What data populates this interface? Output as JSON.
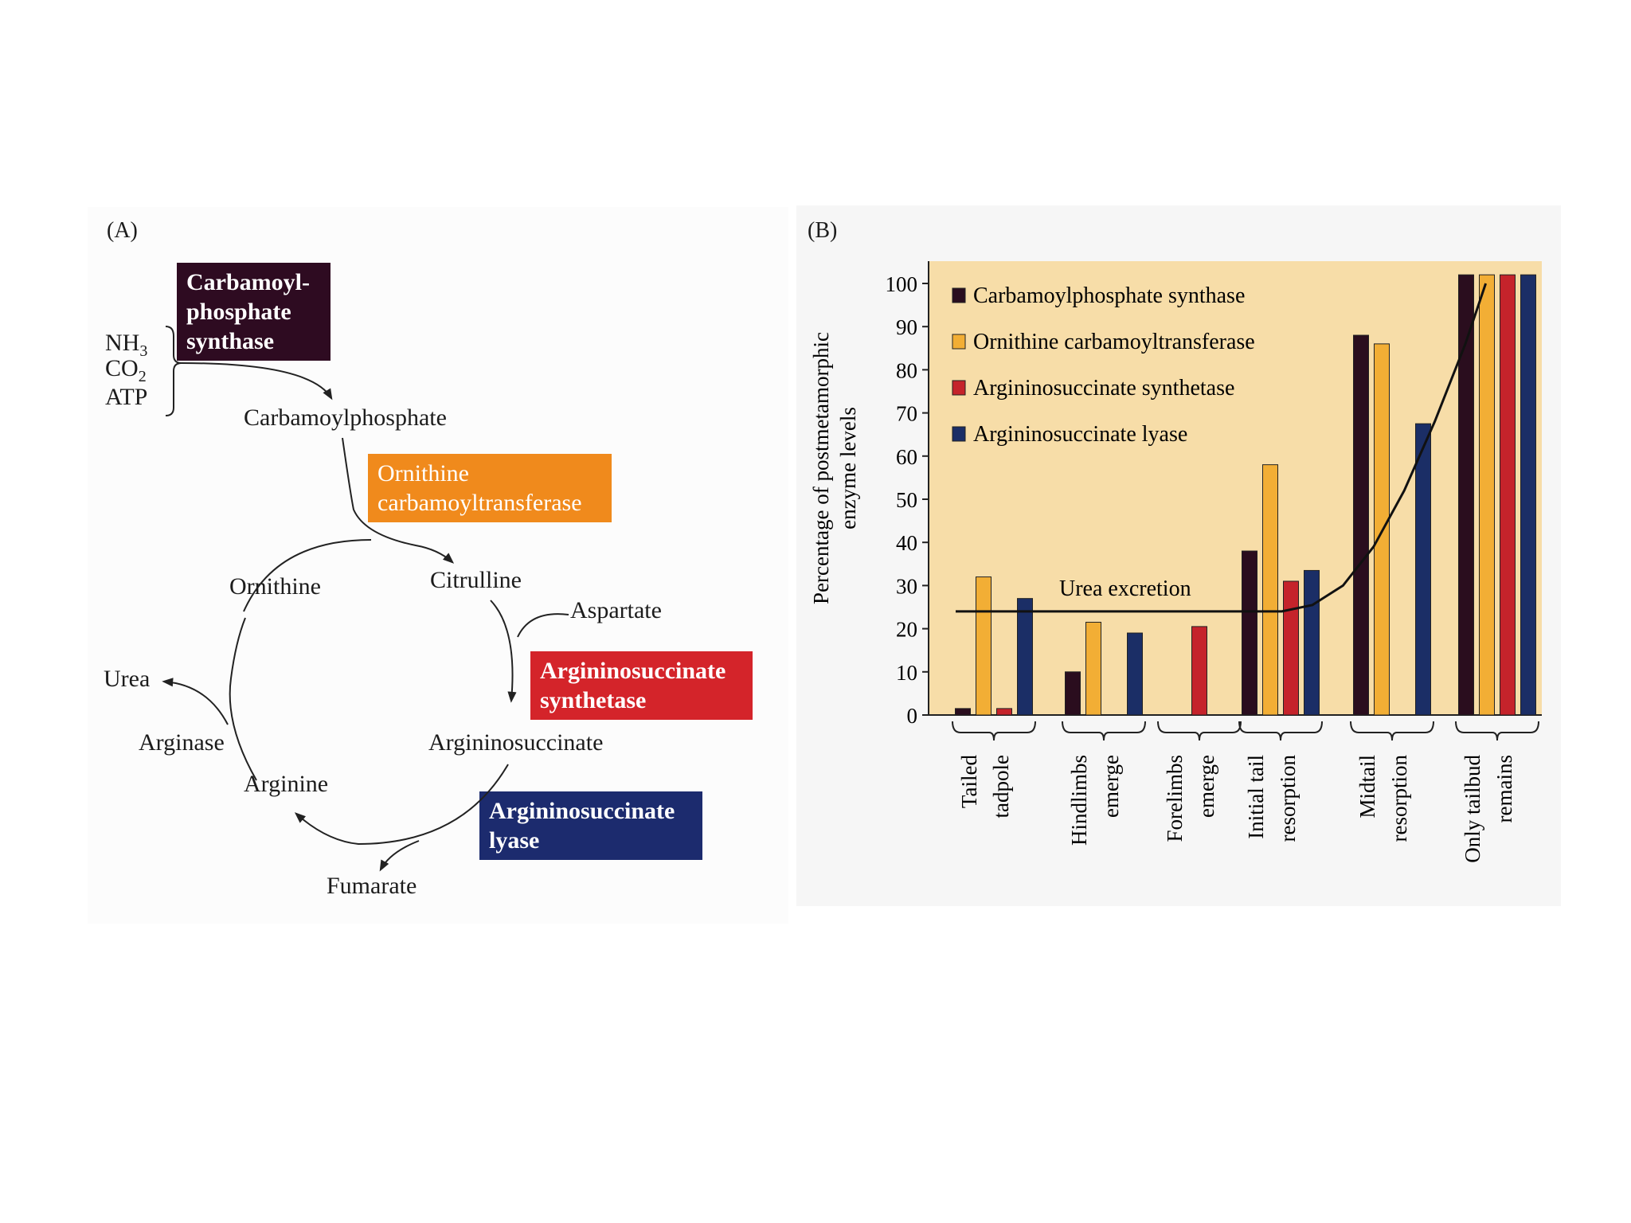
{
  "panel_a": {
    "label": "(A)",
    "reactants": [
      "NH",
      "CO",
      "ATP"
    ],
    "subscript": "3",
    "subscript2": "2",
    "molecules": {
      "carbamoylphosphate": "Carbamoylphosphate",
      "ornithine": "Ornithine",
      "citrulline": "Citrulline",
      "aspartate": "Aspartate",
      "urea": "Urea",
      "arginase": "Arginase",
      "arginine": "Arginine",
      "argininosuccinate": "Argininosuccinate",
      "fumarate": "Fumarate"
    },
    "enzymes": {
      "cps_line1": "Carbamoyl-",
      "cps_line2": "phosphate",
      "cps_line3": "synthase",
      "otc_line1": "Ornithine",
      "otc_line2": "carbamoyltransferase",
      "ass_line1": "Argininosuccinate",
      "ass_line2": "synthetase",
      "asl_line1": "Argininosuccinate",
      "asl_line2": "lyase"
    },
    "colors": {
      "cps": "#2e0b21",
      "otc": "#f08a1c",
      "ass": "#d4242a",
      "asl": "#1c2b6e"
    }
  },
  "panel_b": {
    "label": "(B)",
    "ylabel_line1": "Percentage of postmetamorphic",
    "ylabel_line2": "enzyme levels",
    "curve_label": "Urea excretion"
  },
  "chart_data": {
    "type": "bar",
    "ylim": [
      0,
      100
    ],
    "yticks": [
      0,
      10,
      20,
      30,
      40,
      50,
      60,
      70,
      80,
      90,
      100
    ],
    "categories": [
      [
        "Tailed",
        "tadpole"
      ],
      [
        "Hindlimbs",
        "emerge"
      ],
      [
        "Forelimbs",
        "emerge"
      ],
      [
        "Initial tail",
        "resorption"
      ],
      [
        "Midtail",
        "resorption"
      ],
      [
        "Only tailbud",
        "remains"
      ]
    ],
    "series": [
      {
        "name": "Carbamoylphosphate synthase",
        "color": "#2a0d1e",
        "values": [
          1.5,
          10,
          null,
          38,
          88,
          102
        ]
      },
      {
        "name": "Ornithine carbamoyltransferase",
        "color": "#f2ae35",
        "values": [
          32,
          21.5,
          null,
          58,
          86,
          102
        ]
      },
      {
        "name": "Argininosuccinate synthetase",
        "color": "#c5232b",
        "values": [
          1.5,
          null,
          20.5,
          31,
          null,
          102
        ]
      },
      {
        "name": "Argininosuccinate lyase",
        "color": "#1b2e66",
        "values": [
          27,
          19,
          null,
          33.5,
          67.5,
          102
        ]
      }
    ],
    "urea_excretion_curve": {
      "x": [
        0,
        0.5,
        1,
        1.5,
        2,
        2.5,
        3,
        3.2,
        3.5,
        3.8,
        4.1,
        4.4,
        4.7,
        5.0,
        5.2
      ],
      "y": [
        24,
        24,
        24,
        24,
        24,
        24,
        24,
        24,
        25.5,
        30,
        39,
        52,
        68,
        86,
        100
      ]
    },
    "legend_position": "top-left"
  }
}
